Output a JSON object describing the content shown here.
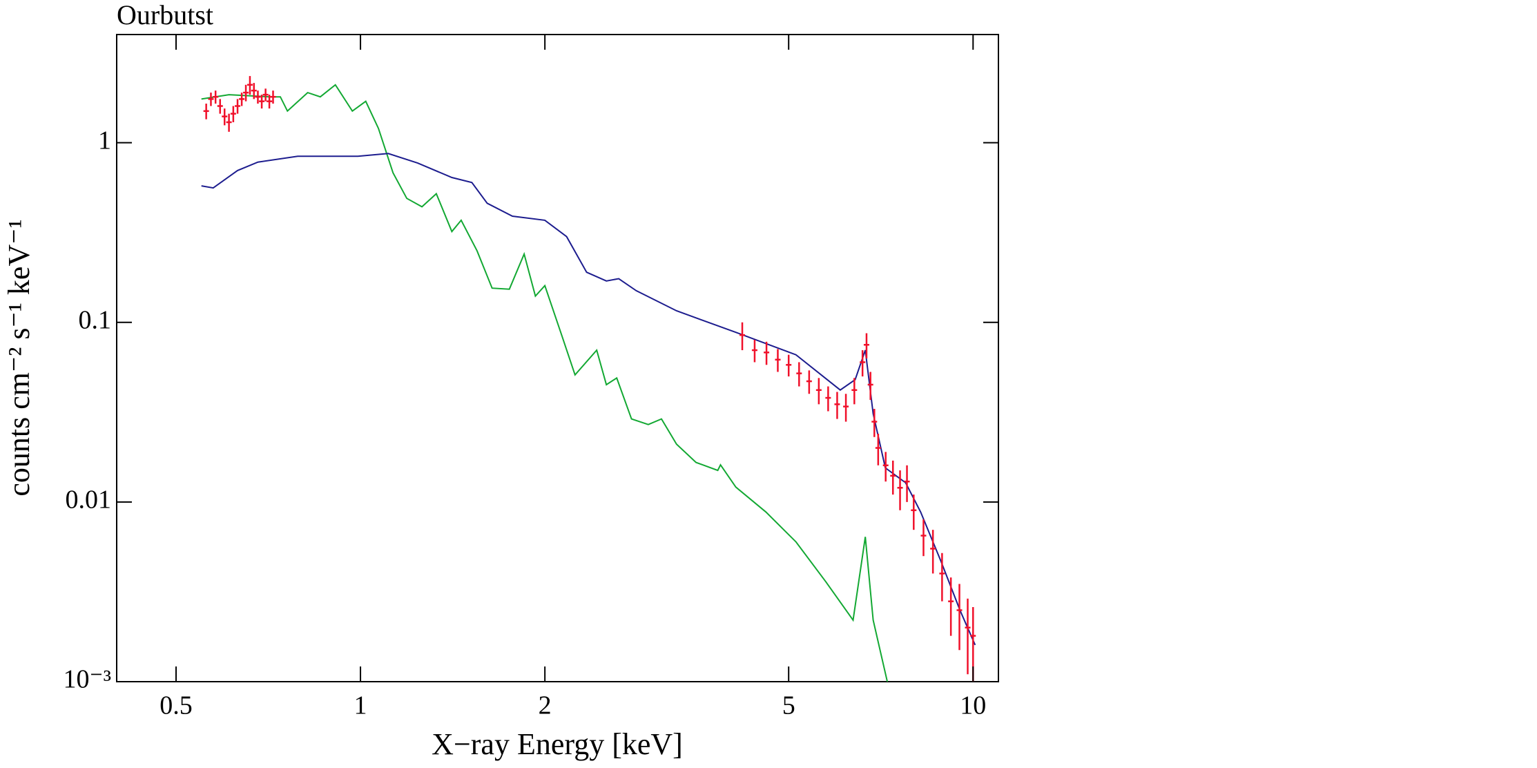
{
  "chart_data": {
    "type": "line",
    "title": "Ourbutst",
    "x_label": "X−ray Energy [keV]",
    "y_label": "counts cm⁻² s⁻¹ keV⁻¹",
    "xscale": "log",
    "yscale": "log",
    "xlim": [
      0.4,
      11
    ],
    "ylim": [
      0.001,
      4
    ],
    "xticks": [
      0.5,
      1,
      2,
      5,
      10
    ],
    "yticks": [
      {
        "value": 0.001,
        "label": "10⁻³"
      },
      0.01,
      0.1,
      1
    ],
    "series": [
      {
        "mode": "line",
        "color": "#12a832",
        "x": [
          0.55,
          0.61,
          0.71,
          0.74,
          0.76,
          0.82,
          0.86,
          0.91,
          0.97,
          1.02,
          1.07,
          1.13,
          1.19,
          1.26,
          1.33,
          1.41,
          1.46,
          1.55,
          1.64,
          1.75,
          1.85,
          1.93,
          2.0,
          2.13,
          2.24,
          2.43,
          2.52,
          2.62,
          2.77,
          2.95,
          3.1,
          3.28,
          3.53,
          3.83,
          3.87,
          4.1,
          4.59,
          5.14,
          5.75,
          6.37,
          6.67,
          6.87,
          7.27
        ],
        "values": [
          1.75,
          1.85,
          1.8,
          1.8,
          1.5,
          1.9,
          1.8,
          2.1,
          1.5,
          1.7,
          1.2,
          0.68,
          0.49,
          0.44,
          0.52,
          0.32,
          0.37,
          0.25,
          0.155,
          0.153,
          0.24,
          0.14,
          0.16,
          0.085,
          0.051,
          0.07,
          0.045,
          0.049,
          0.029,
          0.027,
          0.029,
          0.021,
          0.0166,
          0.015,
          0.0161,
          0.0121,
          0.0088,
          0.006,
          0.0036,
          0.0022,
          0.0064,
          0.0022,
          0.00095
        ]
      },
      {
        "mode": "line",
        "color": "#1c1c8e",
        "x": [
          0.55,
          0.575,
          0.63,
          0.68,
          0.79,
          0.99,
          1.11,
          1.24,
          1.41,
          1.52,
          1.61,
          1.77,
          2.0,
          2.17,
          2.34,
          2.52,
          2.64,
          2.82,
          3.28,
          4.1,
          5.14,
          6.07,
          6.42,
          6.67,
          6.87,
          7.19,
          7.76,
          8.21,
          8.86,
          9.52,
          10.08
        ],
        "values": [
          0.575,
          0.56,
          0.7,
          0.78,
          0.84,
          0.84,
          0.87,
          0.77,
          0.64,
          0.6,
          0.46,
          0.39,
          0.37,
          0.3,
          0.19,
          0.17,
          0.175,
          0.15,
          0.116,
          0.088,
          0.066,
          0.042,
          0.048,
          0.07,
          0.031,
          0.0155,
          0.0128,
          0.0088,
          0.0047,
          0.0025,
          0.0016
        ]
      },
      {
        "mode": "errorbar",
        "color": "#f0102a",
        "x": [
          0.56,
          0.57,
          0.58,
          0.59,
          0.6,
          0.61,
          0.62,
          0.63,
          0.64,
          0.65,
          0.66,
          0.67,
          0.68,
          0.69,
          0.7,
          0.71,
          0.72,
          4.2,
          4.4,
          4.6,
          4.8,
          5.0,
          5.2,
          5.4,
          5.6,
          5.8,
          6.0,
          6.2,
          6.4,
          6.6,
          6.7,
          6.8,
          6.9,
          7.0,
          7.2,
          7.4,
          7.6,
          7.8,
          8.0,
          8.3,
          8.6,
          8.9,
          9.2,
          9.5,
          9.8,
          10.0
        ],
        "values": [
          1.5,
          1.75,
          1.8,
          1.6,
          1.4,
          1.3,
          1.45,
          1.6,
          1.75,
          1.9,
          2.1,
          1.95,
          1.8,
          1.7,
          1.85,
          1.7,
          1.8,
          0.085,
          0.07,
          0.068,
          0.062,
          0.058,
          0.052,
          0.047,
          0.042,
          0.038,
          0.035,
          0.034,
          0.042,
          0.06,
          0.075,
          0.045,
          0.028,
          0.02,
          0.016,
          0.014,
          0.012,
          0.013,
          0.009,
          0.0065,
          0.0055,
          0.004,
          0.0028,
          0.0025,
          0.002,
          0.0018
        ],
        "yerr": [
          0.15,
          0.15,
          0.15,
          0.15,
          0.15,
          0.15,
          0.15,
          0.15,
          0.15,
          0.2,
          0.25,
          0.2,
          0.15,
          0.15,
          0.15,
          0.15,
          0.15,
          0.015,
          0.01,
          0.01,
          0.009,
          0.008,
          0.008,
          0.007,
          0.007,
          0.006,
          0.006,
          0.006,
          0.007,
          0.01,
          0.012,
          0.008,
          0.005,
          0.004,
          0.003,
          0.003,
          0.003,
          0.003,
          0.002,
          0.0015,
          0.0015,
          0.0012,
          0.001,
          0.001,
          0.0009,
          0.0008
        ]
      }
    ]
  }
}
